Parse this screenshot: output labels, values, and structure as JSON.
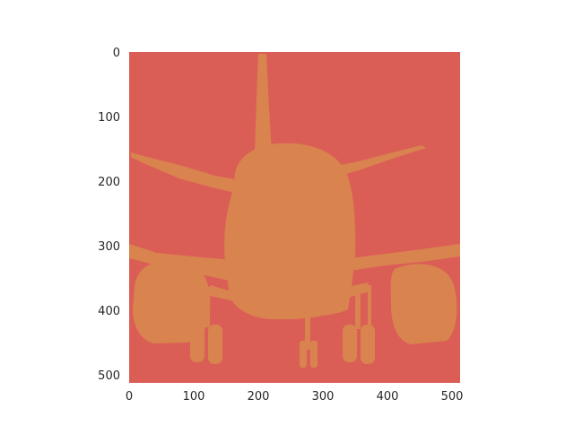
{
  "figure": {
    "background_color": "#ffffff"
  },
  "image": {
    "description_tag": "segmentation mask of airplane (front view)",
    "colors": {
      "background_class": "#db5e56",
      "object_class": "#d9834f"
    }
  },
  "axes": {
    "x_ticks": [
      {
        "value": 0,
        "label": "0"
      },
      {
        "value": 100,
        "label": "100"
      },
      {
        "value": 200,
        "label": "200"
      },
      {
        "value": 300,
        "label": "300"
      },
      {
        "value": 400,
        "label": "400"
      },
      {
        "value": 500,
        "label": "500"
      }
    ],
    "y_ticks": [
      {
        "value": 0,
        "label": "0"
      },
      {
        "value": 100,
        "label": "100"
      },
      {
        "value": 200,
        "label": "200"
      },
      {
        "value": 300,
        "label": "300"
      },
      {
        "value": 400,
        "label": "400"
      },
      {
        "value": 500,
        "label": "500"
      }
    ],
    "xlim": [
      0,
      512
    ],
    "ylim": [
      512,
      0
    ],
    "grid": false,
    "tick_color": "#262626"
  }
}
